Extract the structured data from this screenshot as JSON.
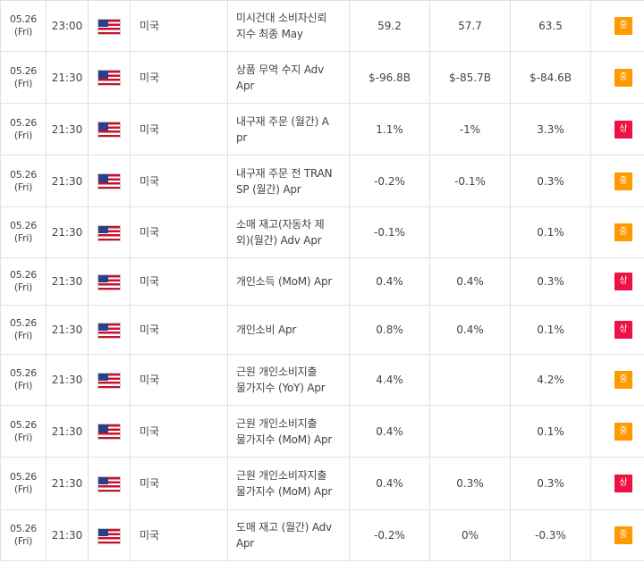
{
  "colors": {
    "medium": "#ff9900",
    "high": "#ee1144"
  },
  "rows": [
    {
      "date": "05.26",
      "day": "(Fri)",
      "time": "23:00",
      "flag_icon": "us-flag-icon",
      "country": "미국",
      "event_line1": "미시건대 소비자신뢰",
      "event_line2": "지수 최종 May",
      "actual": "59.2",
      "forecast": "57.7",
      "previous": "63.5",
      "importance": "중",
      "level": "medium"
    },
    {
      "date": "05.26",
      "day": "(Fri)",
      "time": "21:30",
      "flag_icon": "us-flag-icon",
      "country": "미국",
      "event_line1": "상품 무역 수지 Adv",
      "event_line2": "Apr",
      "actual": "$-96.8B",
      "forecast": "$-85.7B",
      "previous": "$-84.6B",
      "importance": "중",
      "level": "medium"
    },
    {
      "date": "05.26",
      "day": "(Fri)",
      "time": "21:30",
      "flag_icon": "us-flag-icon",
      "country": "미국",
      "event_line1": "내구재 주문 (월간) A",
      "event_line2": "pr",
      "actual": "1.1%",
      "forecast": "-1%",
      "previous": "3.3%",
      "importance": "상",
      "level": "high"
    },
    {
      "date": "05.26",
      "day": "(Fri)",
      "time": "21:30",
      "flag_icon": "us-flag-icon",
      "country": "미국",
      "event_line1": "내구재 주문 전 TRAN",
      "event_line2": "SP (월간) Apr",
      "actual": "-0.2%",
      "forecast": "-0.1%",
      "previous": "0.3%",
      "importance": "중",
      "level": "medium"
    },
    {
      "date": "05.26",
      "day": "(Fri)",
      "time": "21:30",
      "flag_icon": "us-flag-icon",
      "country": "미국",
      "event_line1": "소매 재고(자동차 제",
      "event_line2": "외)(월간) Adv Apr",
      "actual": "-0.1%",
      "forecast": "",
      "previous": "0.1%",
      "importance": "중",
      "level": "medium"
    },
    {
      "date": "05.26",
      "day": "(Fri)",
      "time": "21:30",
      "flag_icon": "us-flag-icon",
      "country": "미국",
      "event_line1": "개인소득 (MoM) Apr",
      "event_line2": "",
      "actual": "0.4%",
      "forecast": "0.4%",
      "previous": "0.3%",
      "importance": "상",
      "level": "high"
    },
    {
      "date": "05.26",
      "day": "(Fri)",
      "time": "21:30",
      "flag_icon": "us-flag-icon",
      "country": "미국",
      "event_line1": "개인소비 Apr",
      "event_line2": "",
      "actual": "0.8%",
      "forecast": "0.4%",
      "previous": "0.1%",
      "importance": "상",
      "level": "high"
    },
    {
      "date": "05.26",
      "day": "(Fri)",
      "time": "21:30",
      "flag_icon": "us-flag-icon",
      "country": "미국",
      "event_line1": "근원 개인소비지출",
      "event_line2": "물가지수 (YoY) Apr",
      "actual": "4.4%",
      "forecast": "",
      "previous": "4.2%",
      "importance": "중",
      "level": "medium"
    },
    {
      "date": "05.26",
      "day": "(Fri)",
      "time": "21:30",
      "flag_icon": "us-flag-icon",
      "country": "미국",
      "event_line1": "근원 개인소비지출",
      "event_line2": "물가지수 (MoM) Apr",
      "actual": "0.4%",
      "forecast": "",
      "previous": "0.1%",
      "importance": "중",
      "level": "medium"
    },
    {
      "date": "05.26",
      "day": "(Fri)",
      "time": "21:30",
      "flag_icon": "us-flag-icon",
      "country": "미국",
      "event_line1": "근원 개인소비자지출",
      "event_line2": "물가지수 (MoM) Apr",
      "actual": "0.4%",
      "forecast": "0.3%",
      "previous": "0.3%",
      "importance": "상",
      "level": "high"
    },
    {
      "date": "05.26",
      "day": "(Fri)",
      "time": "21:30",
      "flag_icon": "us-flag-icon",
      "country": "미국",
      "event_line1": "도매 재고 (월간) Adv",
      "event_line2": "Apr",
      "actual": "-0.2%",
      "forecast": "0%",
      "previous": "-0.3%",
      "importance": "중",
      "level": "medium"
    }
  ]
}
